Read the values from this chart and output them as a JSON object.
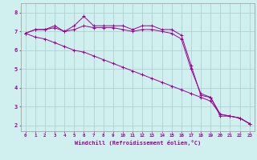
{
  "xlabel": "Windchill (Refroidissement éolien,°C)",
  "ylabel": "",
  "background_color": "#cff0ee",
  "grid_color": "#aacccc",
  "line_color": "#990099",
  "spine_color": "#999999",
  "xlim": [
    -0.5,
    23.5
  ],
  "ylim": [
    1.7,
    8.5
  ],
  "xticks": [
    0,
    1,
    2,
    3,
    4,
    5,
    6,
    7,
    8,
    9,
    10,
    11,
    12,
    13,
    14,
    15,
    16,
    17,
    18,
    19,
    20,
    21,
    22,
    23
  ],
  "yticks": [
    2,
    3,
    4,
    5,
    6,
    7,
    8
  ],
  "line1_x": [
    0,
    1,
    2,
    3,
    4,
    5,
    6,
    7,
    8,
    9,
    10,
    11,
    12,
    13,
    14,
    15,
    16,
    17,
    18,
    19,
    20,
    21,
    22,
    23
  ],
  "line1_y": [
    6.9,
    7.1,
    7.1,
    7.3,
    7.0,
    7.3,
    7.8,
    7.3,
    7.3,
    7.3,
    7.3,
    7.1,
    7.3,
    7.3,
    7.1,
    7.1,
    6.8,
    5.2,
    3.6,
    3.5,
    2.5,
    2.5,
    2.4,
    2.1
  ],
  "line2_x": [
    0,
    1,
    2,
    3,
    4,
    5,
    6,
    7,
    8,
    9,
    10,
    11,
    12,
    13,
    14,
    15,
    16,
    17,
    18,
    19,
    20,
    21,
    22,
    23
  ],
  "line2_y": [
    6.9,
    7.1,
    7.1,
    7.2,
    7.0,
    7.1,
    7.3,
    7.2,
    7.2,
    7.2,
    7.1,
    7.0,
    7.1,
    7.1,
    7.0,
    6.9,
    6.6,
    5.0,
    3.7,
    3.5,
    2.6,
    2.5,
    2.4,
    2.1
  ],
  "line3_x": [
    0,
    1,
    2,
    3,
    4,
    5,
    6,
    7,
    8,
    9,
    10,
    11,
    12,
    13,
    14,
    15,
    16,
    17,
    18,
    19,
    20,
    21,
    22,
    23
  ],
  "line3_y": [
    6.9,
    6.7,
    6.6,
    6.4,
    6.2,
    6.0,
    5.9,
    5.7,
    5.5,
    5.3,
    5.1,
    4.9,
    4.7,
    4.5,
    4.3,
    4.1,
    3.9,
    3.7,
    3.5,
    3.3,
    2.6,
    2.5,
    2.4,
    2.1
  ]
}
